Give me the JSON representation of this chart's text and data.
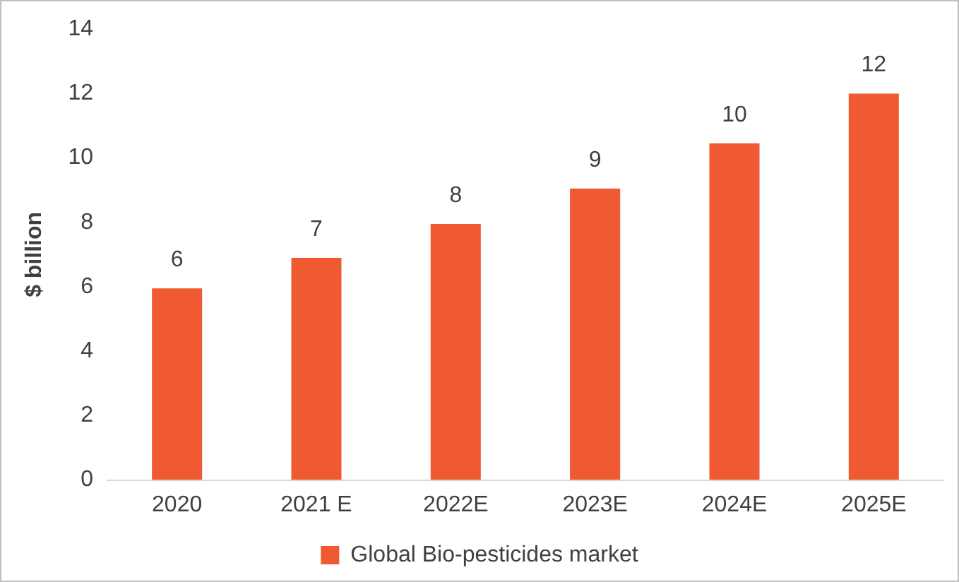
{
  "chart_data": {
    "type": "bar",
    "ylabel": "$ billion",
    "categories": [
      "2020",
      "2021 E",
      "2022E",
      "2023E",
      "2024E",
      "2025E"
    ],
    "series": [
      {
        "name": "Global Bio-pesticides market",
        "color": "#f05a32",
        "values": [
          5.95,
          6.9,
          7.95,
          9.05,
          10.45,
          12.0
        ],
        "value_labels": [
          "6",
          "7",
          "8",
          "9",
          "10",
          "12"
        ]
      }
    ],
    "ylim": [
      0,
      14
    ],
    "yticks": [
      0,
      2,
      4,
      6,
      8,
      10,
      12,
      14
    ],
    "grid": false,
    "legend": "bottom"
  }
}
